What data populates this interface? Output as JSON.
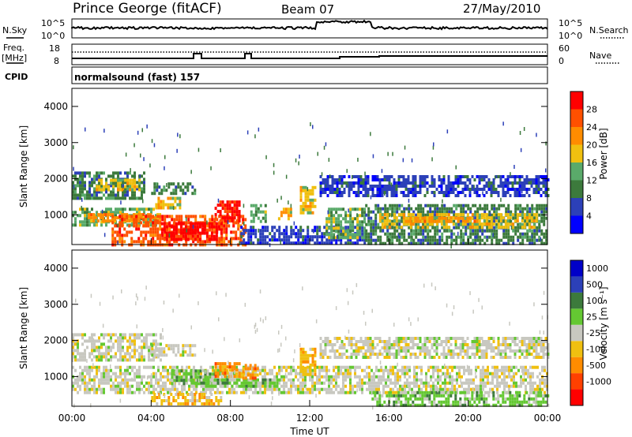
{
  "header": {
    "station": "Prince George (fitACF)",
    "beam": "Beam 07",
    "date": "27/May/2010"
  },
  "top_panels": {
    "nsky_label": "N.Sky",
    "nsky_ticks": [
      "10^5",
      "10^0"
    ],
    "nsearch_label": "N.Search",
    "nsearch_ticks": [
      "10^5",
      "10^0"
    ],
    "freq_label_1": "Freq.",
    "freq_label_2": "[MHz]",
    "freq_ticks": [
      "18",
      "8"
    ],
    "nave_label": "Nave",
    "nave_ticks": [
      "60",
      "0"
    ],
    "cpid_label": "CPID",
    "cpid_text": "normalsound (fast) 157"
  },
  "colors": {
    "power_scale": [
      "#0000ff",
      "#2c40b8",
      "#3c7a3c",
      "#5aaa6a",
      "#f0c010",
      "#ff8c00",
      "#ff5000",
      "#ff0000"
    ],
    "velocity_scale": [
      "#ff0000",
      "#ff4000",
      "#ff8c00",
      "#f0c010",
      "#c8c8c0",
      "#64c832",
      "#3c7a3c",
      "#2c40b8",
      "#0000c8"
    ]
  },
  "chart_data": [
    {
      "type": "heatmap",
      "panel": "power",
      "ylabel": "Slant Range [km]",
      "yticks": [
        "4000",
        "3000",
        "2000",
        "1000"
      ],
      "ylim": [
        180,
        4500
      ],
      "xlim": [
        0,
        24
      ],
      "colorbar_label": "Power [dB]",
      "colorbar_ticks": [
        "28",
        "24",
        "20",
        "16",
        "12",
        "8",
        "4"
      ],
      "regions": [
        {
          "x0": 0.0,
          "x1": 3.6,
          "y0": 1500,
          "y1": 2200,
          "level": 2
        },
        {
          "x0": 1.2,
          "x1": 3.4,
          "y0": 1700,
          "y1": 2000,
          "level": 4
        },
        {
          "x0": 4.0,
          "x1": 6.2,
          "y0": 1600,
          "y1": 1900,
          "level": 2
        },
        {
          "x0": 4.2,
          "x1": 5.4,
          "y0": 1200,
          "y1": 1500,
          "level": 4
        },
        {
          "x0": 0.0,
          "x1": 4.2,
          "y0": 700,
          "y1": 1200,
          "level": 3
        },
        {
          "x0": 0.8,
          "x1": 4.5,
          "y0": 800,
          "y1": 1050,
          "level": 5
        },
        {
          "x0": 2.0,
          "x1": 8.8,
          "y0": 200,
          "y1": 1000,
          "level": 6
        },
        {
          "x0": 4.5,
          "x1": 7.5,
          "y0": 300,
          "y1": 800,
          "level": 7
        },
        {
          "x0": 7.2,
          "x1": 8.5,
          "y0": 800,
          "y1": 1400,
          "level": 7
        },
        {
          "x0": 8.5,
          "x1": 14.8,
          "y0": 200,
          "y1": 700,
          "level": 1
        },
        {
          "x0": 9.0,
          "x1": 9.8,
          "y0": 800,
          "y1": 1300,
          "level": 3
        },
        {
          "x0": 10.4,
          "x1": 11.0,
          "y0": 900,
          "y1": 1200,
          "level": 4
        },
        {
          "x0": 11.5,
          "x1": 12.3,
          "y0": 1100,
          "y1": 1800,
          "level": 4
        },
        {
          "x0": 12.8,
          "x1": 14.8,
          "y0": 400,
          "y1": 1200,
          "level": 3
        },
        {
          "x0": 14.8,
          "x1": 24.0,
          "y0": 200,
          "y1": 1300,
          "level": 2
        },
        {
          "x0": 15.5,
          "x1": 23.5,
          "y0": 700,
          "y1": 1050,
          "level": 4
        },
        {
          "x0": 16.8,
          "x1": 20.5,
          "y0": 800,
          "y1": 950,
          "level": 5
        },
        {
          "x0": 12.5,
          "x1": 24.0,
          "y0": 1550,
          "y1": 2100,
          "level": 1
        }
      ]
    },
    {
      "type": "heatmap",
      "panel": "velocity",
      "xlabel": "Time UT",
      "xticks": [
        "00:00",
        "04:00",
        "08:00",
        "12:00",
        "16:00",
        "20:00",
        "00:00"
      ],
      "ylabel": "Slant Range [km]",
      "yticks": [
        "4000",
        "3000",
        "2000",
        "1000"
      ],
      "ylim": [
        180,
        4500
      ],
      "xlim": [
        0,
        24
      ],
      "colorbar_label": "Velocity [m s⁻¹]",
      "colorbar_ticks": [
        "1000",
        "500",
        "100",
        "25",
        "-25",
        "-100",
        "-500",
        "-1000"
      ],
      "regions": [
        {
          "x0": 0.0,
          "x1": 4.5,
          "y0": 1500,
          "y1": 2200,
          "level": 4
        },
        {
          "x0": 4.0,
          "x1": 6.2,
          "y0": 1600,
          "y1": 1900,
          "level": 4
        },
        {
          "x0": 0.0,
          "x1": 24.0,
          "y0": 600,
          "y1": 1300,
          "level": 4
        },
        {
          "x0": 4.0,
          "x1": 7.5,
          "y0": 250,
          "y1": 550,
          "level": 3
        },
        {
          "x0": 5.0,
          "x1": 7.8,
          "y0": 850,
          "y1": 1200,
          "level": 5
        },
        {
          "x0": 6.0,
          "x1": 10.5,
          "y0": 700,
          "y1": 950,
          "level": 5
        },
        {
          "x0": 7.2,
          "x1": 8.5,
          "y0": 1000,
          "y1": 1400,
          "level": 2
        },
        {
          "x0": 8.6,
          "x1": 9.4,
          "y0": 1000,
          "y1": 1350,
          "level": 2
        },
        {
          "x0": 11.5,
          "x1": 12.3,
          "y0": 1100,
          "y1": 1800,
          "level": 3
        },
        {
          "x0": 12.5,
          "x1": 24.0,
          "y0": 1550,
          "y1": 2100,
          "level": 4
        },
        {
          "x0": 15.0,
          "x1": 24.0,
          "y0": 200,
          "y1": 600,
          "level": 5
        }
      ]
    }
  ]
}
